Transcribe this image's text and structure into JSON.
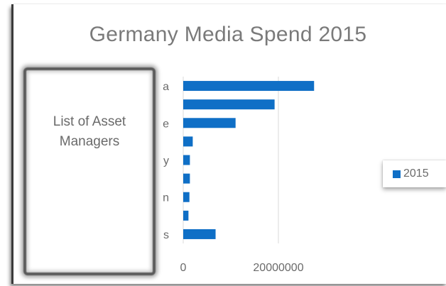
{
  "chart_data": {
    "type": "bar",
    "orientation": "horizontal",
    "title": "Germany Media Spend 2015",
    "categories_visible_fragments": [
      "a",
      "",
      "e",
      "",
      "y",
      "",
      "n",
      "",
      "s"
    ],
    "series": [
      {
        "name": "2015",
        "color": "#0f6fc6",
        "values": [
          27500000,
          19200000,
          11000000,
          2000000,
          1400000,
          1400000,
          1300000,
          1100000,
          6800000
        ]
      }
    ],
    "x_ticks": [
      "0",
      "20000000"
    ],
    "xlim": [
      0,
      40000000
    ],
    "grid": "vertical-major",
    "legend_position": "right"
  },
  "overlay": {
    "label": "List of Asset Managers"
  },
  "legend": {
    "label": "2015"
  }
}
